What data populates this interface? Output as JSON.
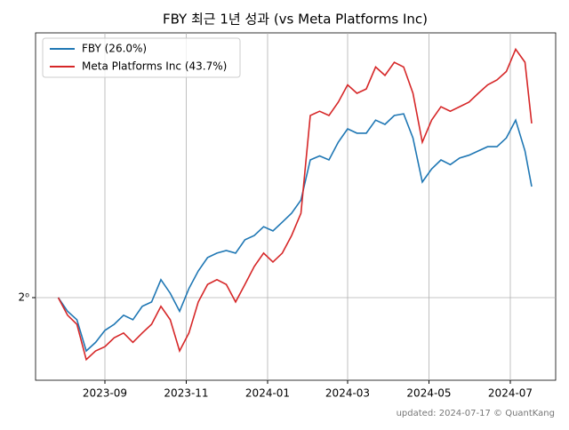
{
  "chart_data": {
    "type": "line",
    "title": "FBY 최근 1년 성과 (vs Meta Platforms Inc)",
    "footer": "updated: 2024-07-17 © QuantKang",
    "x": [
      "2023-07-28",
      "2023-08-04",
      "2023-08-11",
      "2023-08-18",
      "2023-08-25",
      "2023-09-01",
      "2023-09-08",
      "2023-09-15",
      "2023-09-22",
      "2023-09-29",
      "2023-10-06",
      "2023-10-13",
      "2023-10-20",
      "2023-10-27",
      "2023-11-03",
      "2023-11-10",
      "2023-11-17",
      "2023-11-24",
      "2023-12-01",
      "2023-12-08",
      "2023-12-15",
      "2023-12-22",
      "2023-12-29",
      "2024-01-05",
      "2024-01-12",
      "2024-01-19",
      "2024-01-26",
      "2024-02-02",
      "2024-02-09",
      "2024-02-16",
      "2024-02-23",
      "2024-03-01",
      "2024-03-08",
      "2024-03-15",
      "2024-03-22",
      "2024-03-29",
      "2024-04-05",
      "2024-04-12",
      "2024-04-19",
      "2024-04-26",
      "2024-05-03",
      "2024-05-10",
      "2024-05-17",
      "2024-05-24",
      "2024-05-31",
      "2024-06-07",
      "2024-06-14",
      "2024-06-21",
      "2024-06-28",
      "2024-07-05",
      "2024-07-12",
      "2024-07-17"
    ],
    "series": [
      {
        "name": "FBY (26.0%)",
        "color": "#1f77b4",
        "values": [
          1.0,
          0.972,
          0.955,
          0.895,
          0.911,
          0.934,
          0.946,
          0.964,
          0.955,
          0.982,
          0.991,
          1.038,
          1.009,
          0.972,
          1.019,
          1.057,
          1.087,
          1.097,
          1.103,
          1.097,
          1.128,
          1.138,
          1.159,
          1.149,
          1.17,
          1.192,
          1.225,
          1.332,
          1.343,
          1.332,
          1.382,
          1.421,
          1.408,
          1.408,
          1.447,
          1.434,
          1.461,
          1.466,
          1.394,
          1.272,
          1.307,
          1.332,
          1.319,
          1.337,
          1.345,
          1.357,
          1.369,
          1.369,
          1.394,
          1.447,
          1.357,
          1.26
        ]
      },
      {
        "name": "Meta Platforms Inc (43.7%)",
        "color": "#d62728",
        "values": [
          1.0,
          0.964,
          0.946,
          0.879,
          0.895,
          0.903,
          0.92,
          0.929,
          0.911,
          0.929,
          0.946,
          0.982,
          0.955,
          0.895,
          0.929,
          0.991,
          1.028,
          1.038,
          1.028,
          0.991,
          1.028,
          1.067,
          1.097,
          1.077,
          1.097,
          1.138,
          1.192,
          1.461,
          1.474,
          1.461,
          1.502,
          1.557,
          1.53,
          1.544,
          1.616,
          1.588,
          1.632,
          1.616,
          1.53,
          1.382,
          1.447,
          1.488,
          1.474,
          1.488,
          1.502,
          1.53,
          1.557,
          1.573,
          1.601,
          1.677,
          1.632,
          1.437
        ]
      }
    ],
    "xlim": [
      "2023-07-11",
      "2024-08-04"
    ],
    "xticks": [
      {
        "value": "2023-09-01",
        "label": "2023-09"
      },
      {
        "value": "2023-11-01",
        "label": "2023-11"
      },
      {
        "value": "2024-01-01",
        "label": "2024-01"
      },
      {
        "value": "2024-03-01",
        "label": "2024-03"
      },
      {
        "value": "2024-05-01",
        "label": "2024-05"
      },
      {
        "value": "2024-07-01",
        "label": "2024-07"
      }
    ],
    "ylim": [
      0.842,
      1.735
    ],
    "yticks": [
      {
        "value": 1,
        "label": "2⁰"
      }
    ],
    "log_base": 2,
    "grid": true,
    "legend": "upper left"
  }
}
